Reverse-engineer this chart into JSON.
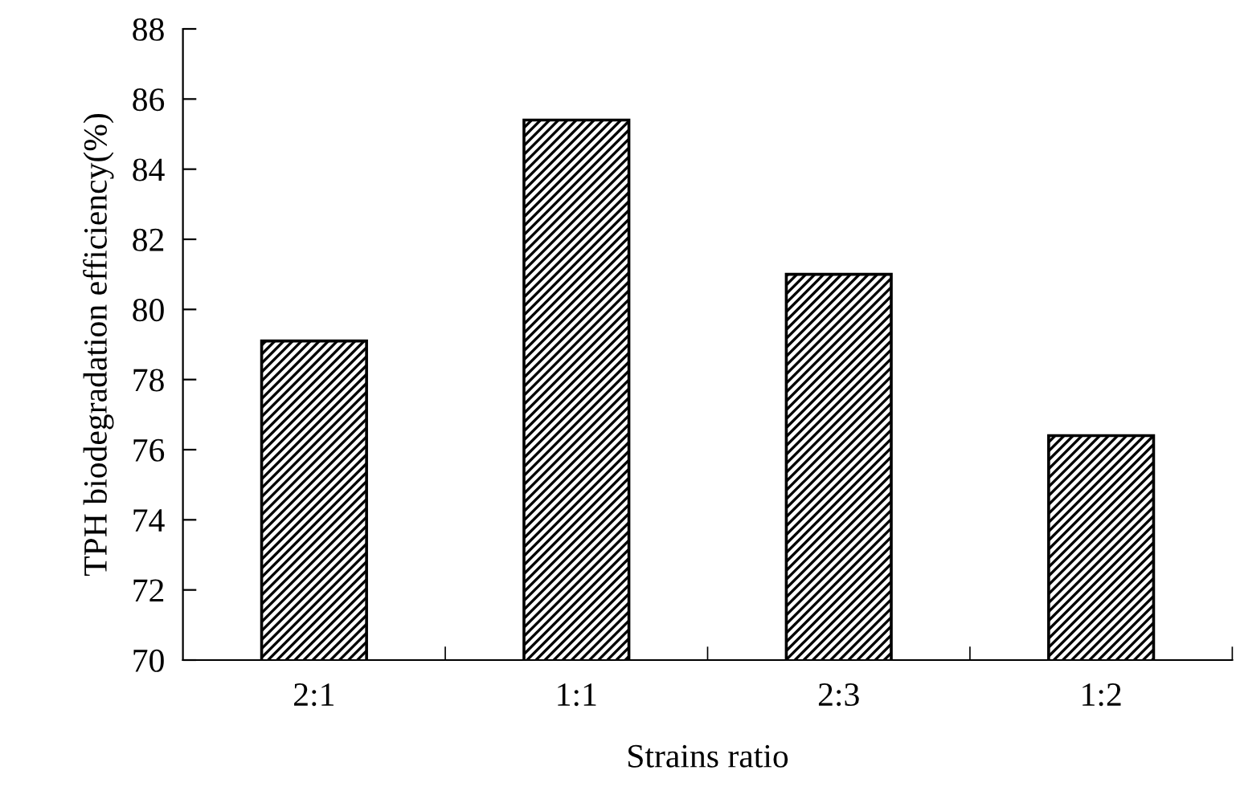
{
  "chart_data": {
    "type": "bar",
    "xlabel": "Strains ratio",
    "ylabel": "TPH biodegradation efficiency(%)",
    "categories": [
      "2:1",
      "1:1",
      "2:3",
      "1:2"
    ],
    "values": [
      79.1,
      85.4,
      81.0,
      76.4
    ],
    "color": "#000000",
    "ylim": [
      70,
      88
    ],
    "yticks": [
      70,
      72,
      74,
      76,
      78,
      80,
      82,
      84,
      86,
      88
    ],
    "grid": false
  }
}
